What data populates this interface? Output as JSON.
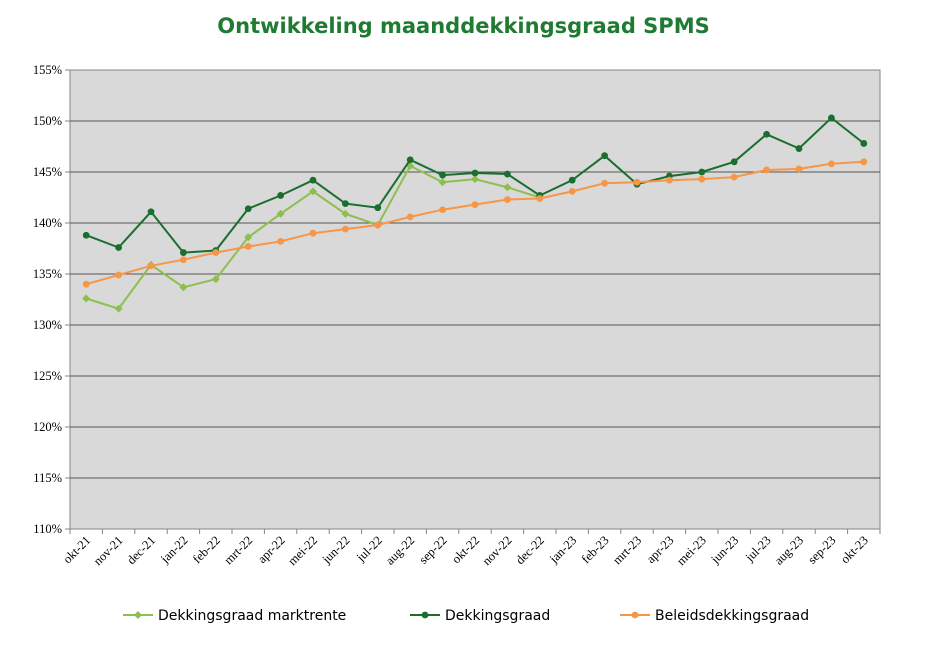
{
  "chart_data": {
    "type": "line",
    "title": "Ontwikkeling maanddekkingsgraad  SPMS",
    "categories": [
      "okt-21",
      "nov-21",
      "dec-21",
      "jan-22",
      "feb-22",
      "mrt-22",
      "apr-22",
      "mei-22",
      "jun-22",
      "jul-22",
      "aug-22",
      "sep-22",
      "okt-22",
      "nov-22",
      "dec-22",
      "jan-23",
      "feb-23",
      "mrt-23",
      "apr-23",
      "mei-23",
      "jun-23",
      "jul-23",
      "aug-23",
      "sep-23",
      "okt-23"
    ],
    "ylim": [
      110,
      155
    ],
    "yticks": [
      110,
      115,
      120,
      125,
      130,
      135,
      140,
      145,
      150,
      155
    ],
    "yticks_labels": [
      "110%",
      "115%",
      "120%",
      "125%",
      "130%",
      "135%",
      "140%",
      "145%",
      "150%",
      "155%"
    ],
    "grid": true,
    "legend_position": "bottom",
    "series": [
      {
        "name": "Dekkingsgraad marktrente",
        "color": "#8dbf4e",
        "marker": "diamond",
        "values": [
          132.6,
          131.6,
          135.9,
          133.7,
          134.5,
          138.6,
          140.9,
          143.1,
          140.9,
          139.8,
          145.6,
          144.0,
          144.3,
          143.5,
          142.5,
          null,
          null,
          null,
          null,
          null,
          null,
          null,
          null,
          null,
          null
        ]
      },
      {
        "name": "Dekkingsgraad",
        "color": "#1a6e2e",
        "marker": "circle",
        "values": [
          138.8,
          137.6,
          141.1,
          137.1,
          137.3,
          141.4,
          142.7,
          144.2,
          141.9,
          141.5,
          146.2,
          144.7,
          144.9,
          144.8,
          142.7,
          144.2,
          146.6,
          143.8,
          144.6,
          145.0,
          146.0,
          148.7,
          147.3,
          150.3,
          147.8
        ]
      },
      {
        "name": "Beleidsdekkingsgraad",
        "color": "#f79646",
        "marker": "circle",
        "values": [
          134.0,
          134.9,
          135.8,
          136.4,
          137.1,
          137.7,
          138.2,
          139.0,
          139.4,
          139.8,
          140.6,
          141.3,
          141.8,
          142.3,
          142.4,
          143.1,
          143.9,
          144.0,
          144.2,
          144.3,
          144.5,
          145.2,
          145.3,
          145.8,
          146.0
        ]
      }
    ]
  }
}
